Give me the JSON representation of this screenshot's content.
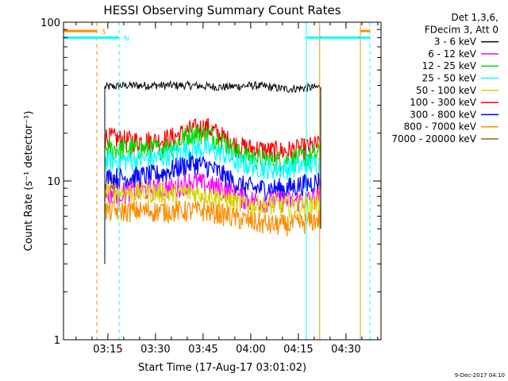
{
  "chart_data": {
    "type": "line",
    "title": "HESSI Observing Summary Count Rates",
    "xlabel": "Start Time (17-Aug-17 03:01:02)",
    "ylabel": "Count Rate (s⁻¹ detector⁻¹)",
    "ylog": true,
    "ylim": [
      1,
      100
    ],
    "xlim_minutes": [
      0,
      100
    ],
    "x_ticks": [
      "03:15",
      "03:30",
      "03:45",
      "04:00",
      "04:15",
      "04:30"
    ],
    "x_tick_minutes": [
      13.97,
      28.97,
      43.97,
      58.97,
      73.97,
      88.97
    ],
    "y_ticks": [
      "1",
      "10",
      "100"
    ],
    "y_tick_values": [
      1,
      10,
      100
    ],
    "legend": {
      "position": "top-right",
      "header": [
        "Det 1,3,6,",
        "FDecim 3, Att 0"
      ],
      "entries": [
        {
          "label": "3 - 6 keV",
          "color": "#000000"
        },
        {
          "label": "6 - 12 keV",
          "color": "#ff00ff"
        },
        {
          "label": "12 - 25 keV",
          "color": "#00e000"
        },
        {
          "label": "25 - 50 keV",
          "color": "#00ffff"
        },
        {
          "label": "50 - 100 keV",
          "color": "#d8d800"
        },
        {
          "label": "100 - 300 keV",
          "color": "#ff0000"
        },
        {
          "label": "300 - 800 keV",
          "color": "#0000ff"
        },
        {
          "label": "800 - 7000 keV",
          "color": "#ff8c00"
        },
        {
          "label": "7000 - 20000 keV",
          "color": "#8b6b14"
        }
      ]
    },
    "data_window_minutes": [
      13.0,
      81.0
    ],
    "series": [
      {
        "name": "3 - 6 keV",
        "color": "#000000",
        "x": [
          13,
          20,
          30,
          40,
          50,
          60,
          70,
          81
        ],
        "y": [
          39,
          40,
          40,
          40,
          39,
          40,
          38,
          39
        ]
      },
      {
        "name": "100 - 300 keV",
        "color": "#ff0000",
        "x": [
          13,
          20,
          30,
          35,
          40,
          45,
          50,
          55,
          60,
          65,
          70,
          75,
          81
        ],
        "y": [
          19,
          18,
          18,
          19,
          21,
          22,
          19,
          16.5,
          16,
          15.5,
          15.5,
          16,
          17
        ]
      },
      {
        "name": "12 - 25 keV",
        "color": "#00e000",
        "x": [
          13,
          20,
          30,
          35,
          40,
          45,
          50,
          55,
          60,
          65,
          70,
          75,
          81
        ],
        "y": [
          16,
          16,
          16,
          17,
          20,
          20,
          18,
          15,
          14,
          13.5,
          13.5,
          14,
          15
        ]
      },
      {
        "name": "25 - 50 keV",
        "color": "#00ffff",
        "x": [
          13,
          20,
          30,
          35,
          40,
          45,
          50,
          55,
          60,
          65,
          70,
          75,
          81
        ],
        "y": [
          13.5,
          13.5,
          14,
          15,
          16,
          16,
          15,
          13,
          12.5,
          12,
          12,
          12.5,
          13
        ]
      },
      {
        "name": "300 - 800 keV",
        "color": "#0000ff",
        "x": [
          13,
          20,
          30,
          35,
          40,
          45,
          50,
          55,
          60,
          65,
          70,
          75,
          81
        ],
        "y": [
          10.5,
          10.5,
          11,
          12,
          13,
          12.5,
          11,
          9.5,
          9,
          9,
          9,
          9.5,
          10
        ]
      },
      {
        "name": "6 - 12 keV",
        "color": "#ff00ff",
        "x": [
          13,
          20,
          30,
          35,
          40,
          45,
          50,
          55,
          60,
          65,
          70,
          75,
          81
        ],
        "y": [
          8.5,
          8.5,
          9,
          9,
          10,
          9.5,
          9,
          8,
          7.5,
          7.5,
          7.5,
          7.5,
          8
        ]
      },
      {
        "name": "50 - 100 keV",
        "color": "#d8d800",
        "x": [
          13,
          20,
          30,
          35,
          40,
          45,
          50,
          55,
          60,
          65,
          70,
          75,
          81
        ],
        "y": [
          8.8,
          8.5,
          8.5,
          8.3,
          8.5,
          8.3,
          7.8,
          7.2,
          7,
          7,
          7,
          7,
          7.3
        ]
      },
      {
        "name": "800 - 7000 keV",
        "color": "#ff8c00",
        "x": [
          13,
          20,
          30,
          35,
          40,
          45,
          50,
          55,
          60,
          65,
          70,
          75,
          81
        ],
        "y": [
          6.5,
          6.5,
          6.5,
          6.5,
          6.5,
          6.5,
          6.2,
          5.8,
          5.5,
          5.3,
          5.3,
          5.4,
          5.8
        ]
      }
    ],
    "markers": [
      {
        "label": "S",
        "color": "#ff8c00",
        "style": "dashed",
        "bar_from_minutes": 0,
        "bar_to_minutes": 10.5,
        "level": 88
      },
      {
        "label": "N",
        "color": "#00ffff",
        "style": "dashed",
        "bar_from_minutes": 0,
        "bar_to_minutes": 17.5,
        "level": 80
      }
    ],
    "vertical_lines_minutes": [
      {
        "x": 10.5,
        "color": "#ff8c00",
        "style": "dashed"
      },
      {
        "x": 17.5,
        "color": "#00ffff",
        "style": "dashed"
      },
      {
        "x": 76.5,
        "color": "#00ffff",
        "style": "solid"
      },
      {
        "x": 80.7,
        "color": "#ff8c00",
        "style": "solid"
      },
      {
        "x": 93.5,
        "color": "#ff8c00",
        "style": "solid"
      },
      {
        "x": 96.5,
        "color": "#00ffff",
        "style": "dashed"
      }
    ],
    "right_bars": [
      {
        "color": "#00ffff",
        "from_minutes": 76.5,
        "to_minutes": 96.5,
        "level": 80
      },
      {
        "color": "#ff8c00",
        "from_minutes": 93.5,
        "to_minutes": 96.5,
        "level": 88
      }
    ],
    "footer_timestamp": "9-Dec-2017 04:10"
  }
}
